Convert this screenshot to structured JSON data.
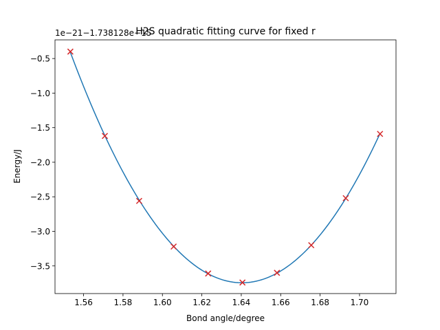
{
  "chart_data": {
    "type": "scatter",
    "title": "H2S quadratic fitting curve for fixed r",
    "xlabel": "Bond angle/degree",
    "ylabel": "Energy/J",
    "offset_label": "1e−21−1.738128e−15",
    "xlim": [
      1.5455,
      1.7185
    ],
    "ylim": [
      -3.9,
      -0.23
    ],
    "x_ticks": [
      1.56,
      1.58,
      1.6,
      1.62,
      1.64,
      1.66,
      1.68,
      1.7
    ],
    "x_tick_labels": [
      "1.56",
      "1.58",
      "1.60",
      "1.62",
      "1.64",
      "1.66",
      "1.68",
      "1.70"
    ],
    "y_ticks": [
      -0.5,
      -1.0,
      -1.5,
      -2.0,
      -2.5,
      -3.0,
      -3.5
    ],
    "y_tick_labels": [
      "−0.5",
      "−1.0",
      "−1.5",
      "−2.0",
      "−2.5",
      "−3.0",
      "−3.5"
    ],
    "grid": false,
    "series": [
      {
        "kind": "fit-curve",
        "color": "#1f77b4",
        "x": [
          1.5533,
          1.5708,
          1.5882,
          1.6057,
          1.6232,
          1.6406,
          1.6581,
          1.6755,
          1.693,
          1.7104
        ],
        "y": [
          -0.4,
          -1.62,
          -2.56,
          -3.22,
          -3.61,
          -3.74,
          -3.6,
          -3.2,
          -2.52,
          -1.59
        ]
      },
      {
        "kind": "data-points",
        "marker": "x",
        "color": "#d62728",
        "x": [
          1.5533,
          1.5708,
          1.5882,
          1.6057,
          1.6232,
          1.6406,
          1.6581,
          1.6755,
          1.693,
          1.7104
        ],
        "y": [
          -0.4,
          -1.62,
          -2.56,
          -3.22,
          -3.61,
          -3.74,
          -3.6,
          -3.2,
          -2.52,
          -1.59
        ]
      }
    ]
  }
}
